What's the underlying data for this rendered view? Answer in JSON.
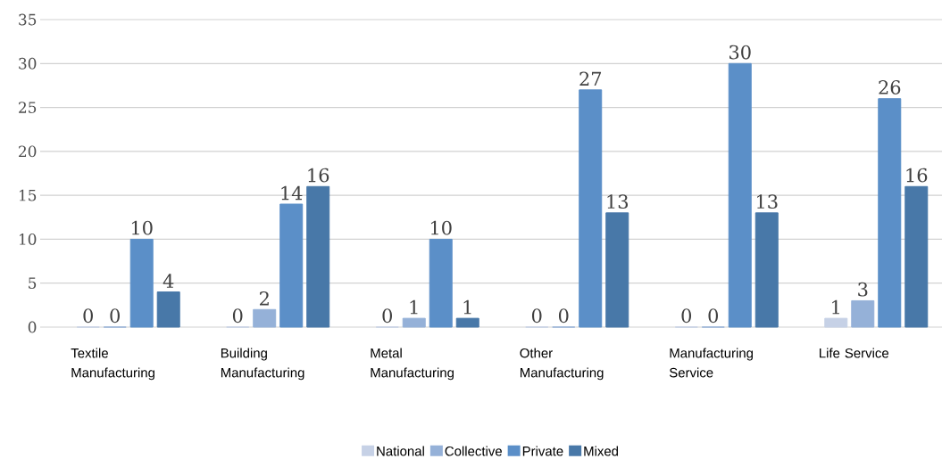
{
  "chart_data": {
    "type": "bar",
    "categories": [
      "Textile Manufacturing",
      "Building Manufacturing",
      "Metal Manufacturing",
      "Other Manufacturing",
      "Manufacturing Service",
      "Life Service"
    ],
    "series": [
      {
        "name": "National",
        "color": "#c6d1e6",
        "values": [
          0,
          0,
          0,
          0,
          0,
          1
        ]
      },
      {
        "name": "Collective",
        "color": "#95b1d8",
        "values": [
          0,
          2,
          1,
          0,
          0,
          3
        ]
      },
      {
        "name": "Private",
        "color": "#5b8fc8",
        "values": [
          10,
          14,
          10,
          27,
          30,
          26
        ]
      },
      {
        "name": "Mixed",
        "color": "#4878a8",
        "values": [
          4,
          16,
          1,
          13,
          13,
          16
        ]
      }
    ],
    "ylim": [
      0,
      35
    ],
    "yticks": [
      0,
      5,
      10,
      15,
      20,
      25,
      30,
      35
    ],
    "grid": "y",
    "legend": "bottom",
    "data_labels": true
  }
}
